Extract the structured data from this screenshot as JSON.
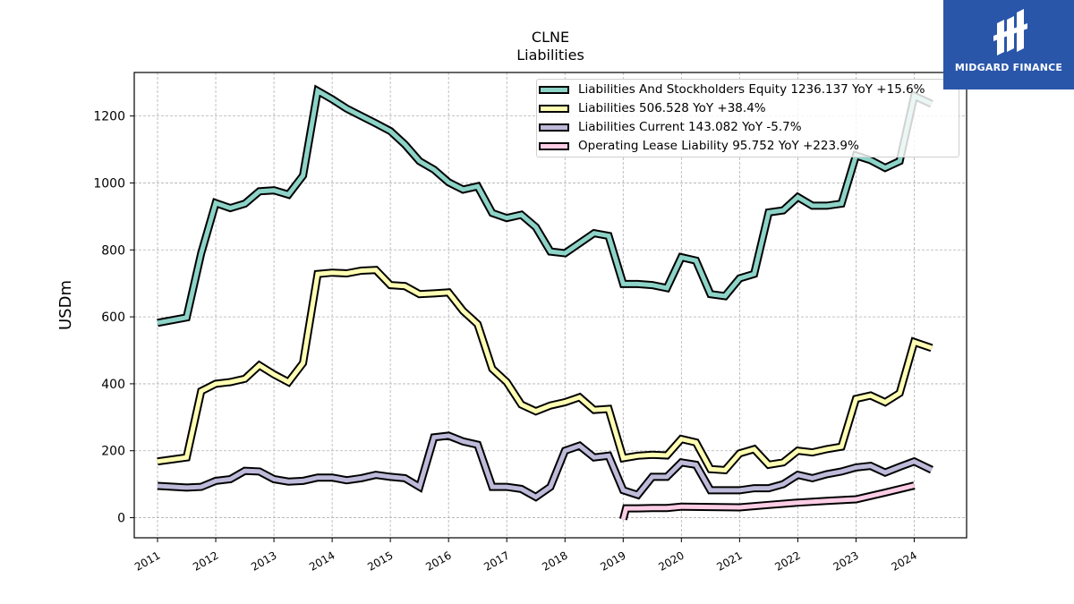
{
  "chart_data": {
    "type": "line",
    "title": "CLNE",
    "subtitle": "Liabilities",
    "ylabel": "USDm",
    "xlabel": "",
    "ylim": [
      -60,
      1330
    ],
    "xlim": [
      2010.6,
      2024.9
    ],
    "yticks": [
      0,
      200,
      400,
      600,
      800,
      1000,
      1200
    ],
    "xticks": [
      "2011",
      "2012",
      "2013",
      "2014",
      "2015",
      "2016",
      "2017",
      "2018",
      "2019",
      "2020",
      "2021",
      "2022",
      "2023",
      "2024"
    ],
    "grid": true,
    "legend_position": "top-right",
    "series": [
      {
        "name": "Liabilities And Stockholders Equity",
        "legend_label": "Liabilities And Stockholders Equity  1236.137 YoY +15.6%",
        "color": "#8dd3c7",
        "x": [
          2011.0,
          2011.5,
          2011.75,
          2012.0,
          2012.25,
          2012.5,
          2012.75,
          2013.0,
          2013.25,
          2013.5,
          2013.75,
          2014.0,
          2014.25,
          2014.5,
          2014.75,
          2015.0,
          2015.25,
          2015.5,
          2015.75,
          2016.0,
          2016.25,
          2016.5,
          2016.75,
          2017.0,
          2017.25,
          2017.5,
          2017.75,
          2018.0,
          2018.25,
          2018.5,
          2018.75,
          2019.0,
          2019.25,
          2019.5,
          2019.75,
          2020.0,
          2020.25,
          2020.5,
          2020.75,
          2021.0,
          2021.25,
          2021.5,
          2021.75,
          2022.0,
          2022.25,
          2022.5,
          2022.75,
          2023.0,
          2023.25,
          2023.5,
          2023.75,
          2024.0,
          2024.3
        ],
        "values": [
          582,
          598,
          790,
          940,
          925,
          938,
          975,
          978,
          965,
          1022,
          1275,
          1250,
          1222,
          1200,
          1178,
          1155,
          1115,
          1065,
          1040,
          1002,
          980,
          990,
          910,
          895,
          905,
          868,
          795,
          790,
          820,
          850,
          842,
          698,
          698,
          695,
          686,
          778,
          768,
          668,
          662,
          715,
          728,
          912,
          918,
          958,
          932,
          932,
          938,
          1082,
          1068,
          1045,
          1065,
          1260,
          1236
        ]
      },
      {
        "name": "Liabilities",
        "legend_label": "Liabilities  506.528 YoY +38.4%",
        "color": "#ffffb3",
        "x": [
          2011.0,
          2011.5,
          2011.75,
          2012.0,
          2012.25,
          2012.5,
          2012.75,
          2013.0,
          2013.25,
          2013.5,
          2013.75,
          2014.0,
          2014.25,
          2014.5,
          2014.75,
          2015.0,
          2015.25,
          2015.5,
          2015.75,
          2016.0,
          2016.25,
          2016.5,
          2016.75,
          2017.0,
          2017.25,
          2017.5,
          2017.75,
          2018.0,
          2018.25,
          2018.5,
          2018.75,
          2019.0,
          2019.25,
          2019.5,
          2019.75,
          2020.0,
          2020.25,
          2020.5,
          2020.75,
          2021.0,
          2021.25,
          2021.5,
          2021.75,
          2022.0,
          2022.25,
          2022.5,
          2022.75,
          2023.0,
          2023.25,
          2023.5,
          2023.75,
          2024.0,
          2024.3
        ],
        "values": [
          168,
          180,
          378,
          400,
          405,
          415,
          455,
          428,
          405,
          462,
          728,
          732,
          730,
          738,
          740,
          695,
          692,
          668,
          670,
          673,
          618,
          578,
          445,
          405,
          338,
          318,
          335,
          345,
          360,
          322,
          325,
          178,
          185,
          188,
          186,
          235,
          225,
          145,
          142,
          192,
          205,
          158,
          165,
          200,
          195,
          205,
          212,
          355,
          365,
          345,
          372,
          525,
          507
        ]
      },
      {
        "name": "Liabilities Current",
        "legend_label": "Liabilities Current  143.082 YoY -5.7%",
        "color": "#bebada",
        "x": [
          2011.0,
          2011.5,
          2011.75,
          2012.0,
          2012.25,
          2012.5,
          2012.75,
          2013.0,
          2013.25,
          2013.5,
          2013.75,
          2014.0,
          2014.25,
          2014.5,
          2014.75,
          2015.0,
          2015.25,
          2015.5,
          2015.75,
          2016.0,
          2016.25,
          2016.5,
          2016.75,
          2017.0,
          2017.25,
          2017.5,
          2017.75,
          2018.0,
          2018.25,
          2018.5,
          2018.75,
          2019.0,
          2019.25,
          2019.5,
          2019.75,
          2020.0,
          2020.25,
          2020.5,
          2020.75,
          2021.0,
          2021.25,
          2021.5,
          2021.75,
          2022.0,
          2022.25,
          2022.5,
          2022.75,
          2023.0,
          2023.25,
          2023.5,
          2023.75,
          2024.0,
          2024.3
        ],
        "values": [
          95,
          90,
          92,
          110,
          115,
          140,
          138,
          115,
          108,
          110,
          120,
          120,
          112,
          118,
          128,
          122,
          118,
          92,
          240,
          245,
          228,
          218,
          92,
          92,
          86,
          62,
          92,
          200,
          215,
          180,
          185,
          82,
          68,
          122,
          122,
          165,
          158,
          82,
          82,
          82,
          88,
          88,
          100,
          128,
          118,
          130,
          138,
          150,
          155,
          135,
          152,
          168,
          143
        ]
      },
      {
        "name": "Operating Lease Liability",
        "legend_label": "Operating Lease Liability  95.752 YoY +223.9%",
        "color": "#fccde5",
        "x": [
          2019.0,
          2019.05,
          2019.25,
          2019.5,
          2019.75,
          2020.0,
          2020.5,
          2021.0,
          2021.5,
          2022.0,
          2022.5,
          2023.0,
          2023.5,
          2024.0
        ],
        "values": [
          -5,
          28,
          28,
          29,
          29,
          33,
          32,
          31,
          38,
          45,
          50,
          55,
          75,
          96
        ]
      }
    ]
  },
  "logo": {
    "text": "MIDGARD FINANCE",
    "color": "#2a56aa"
  }
}
